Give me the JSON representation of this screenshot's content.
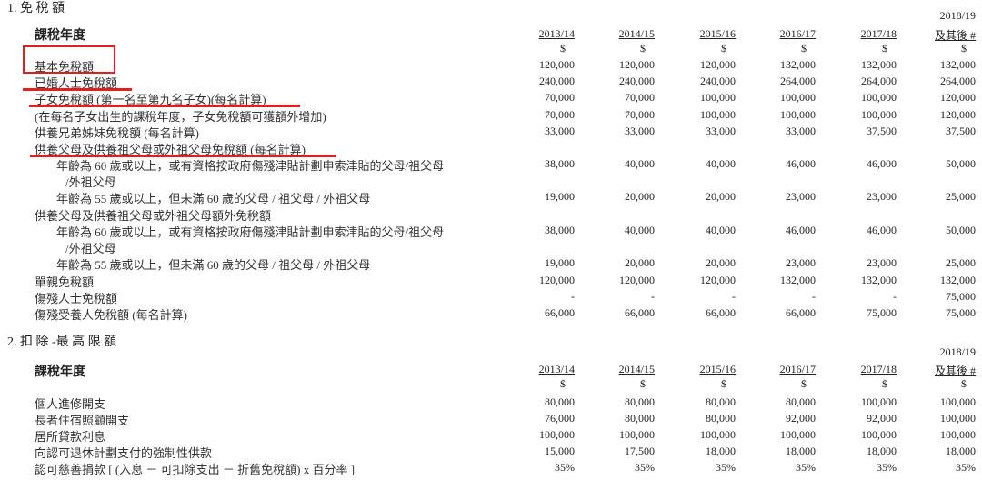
{
  "colors": {
    "annotation_red": "#e02020",
    "text": "#222222"
  },
  "section1": {
    "title": "1. 免 稅 額",
    "header_label": "課稅年度",
    "last_year_top": "2018/19",
    "years": [
      "2013/14",
      "2014/15",
      "2015/16",
      "2016/17",
      "2017/18",
      "及其後 #"
    ],
    "currency": [
      "$",
      "$",
      "$",
      "$",
      "$",
      "$"
    ],
    "rows": [
      {
        "label": "基本免稅額",
        "indent": 0,
        "values": [
          "120,000",
          "120,000",
          "120,000",
          "132,000",
          "132,000",
          "132,000"
        ]
      },
      {
        "label": "已婚人士免稅額",
        "indent": 0,
        "values": [
          "240,000",
          "240,000",
          "240,000",
          "264,000",
          "264,000",
          "264,000"
        ]
      },
      {
        "label": "子女免稅額 (第一名至第九名子女)(每名計算)",
        "indent": 0,
        "values": [
          "70,000",
          "70,000",
          "100,000",
          "100,000",
          "100,000",
          "120,000"
        ]
      },
      {
        "label": "(在每名子女出生的課稅年度，子女免稅額可獲額外增加)",
        "indent": 0,
        "values": [
          "70,000",
          "70,000",
          "100,000",
          "100,000",
          "100,000",
          "120,000"
        ]
      },
      {
        "label": "供養兄弟姊妹免稅額 (每名計算)",
        "indent": 0,
        "values": [
          "33,000",
          "33,000",
          "33,000",
          "33,000",
          "37,500",
          "37,500"
        ]
      },
      {
        "label": "供養父母及供養祖父母或外祖父母免稅額 (每名計算)",
        "indent": 0,
        "values": []
      },
      {
        "label": "年齡為 60 歲或以上，或有資格按政府傷殘津貼計劃申索津貼的父母/祖父母",
        "cont": "/外祖父母",
        "indent": 1,
        "values": [
          "38,000",
          "40,000",
          "40,000",
          "46,000",
          "46,000",
          "50,000"
        ]
      },
      {
        "label": "年齡為 55 歲或以上，但未滿 60 歲的父母 / 祖父母 / 外祖父母",
        "indent": 1,
        "values": [
          "19,000",
          "20,000",
          "20,000",
          "23,000",
          "23,000",
          "25,000"
        ]
      },
      {
        "label": "供養父母及供養祖父母或外祖父母額外免稅額",
        "indent": 0,
        "values": []
      },
      {
        "label": "年齡為 60 歲或以上，或有資格按政府傷殘津貼計劃申索津貼的父母/祖父母",
        "cont": "/外祖父母",
        "indent": 1,
        "values": [
          "38,000",
          "40,000",
          "40,000",
          "46,000",
          "46,000",
          "50,000"
        ]
      },
      {
        "label": "年齡為 55 歲或以上，但未滿 60 歲的父母 / 祖父母 / 外祖父母",
        "indent": 1,
        "values": [
          "19,000",
          "20,000",
          "20,000",
          "23,000",
          "23,000",
          "25,000"
        ]
      },
      {
        "label": "單親免稅額",
        "indent": 0,
        "values": [
          "120,000",
          "120,000",
          "120,000",
          "132,000",
          "132,000",
          "132,000"
        ]
      },
      {
        "label": "傷殘人士免稅額",
        "indent": 0,
        "values": [
          "-",
          "-",
          "-",
          "-",
          "-",
          "75,000"
        ]
      },
      {
        "label": "傷殘受養人免稅額 (每名計算)",
        "indent": 0,
        "values": [
          "66,000",
          "66,000",
          "66,000",
          "66,000",
          "75,000",
          "75,000"
        ]
      }
    ]
  },
  "section2": {
    "title": "2. 扣 除  -最 高 限 額",
    "header_label": "課稅年度",
    "last_year_top": "2018/19",
    "years": [
      "2013/14",
      "2014/15",
      "2015/16",
      "2016/17",
      "2017/18",
      "及其後 #"
    ],
    "currency": [
      "$",
      "$",
      "$",
      "$",
      "$",
      "$"
    ],
    "rows": [
      {
        "label": "個人進修開支",
        "indent": 0,
        "values": [
          "80,000",
          "80,000",
          "80,000",
          "80,000",
          "100,000",
          "100,000"
        ]
      },
      {
        "label": "長者住宿照顧開支",
        "indent": 0,
        "values": [
          "76,000",
          "80,000",
          "80,000",
          "92,000",
          "92,000",
          "100,000"
        ]
      },
      {
        "label": "居所貸款利息",
        "indent": 0,
        "values": [
          "100,000",
          "100,000",
          "100,000",
          "100,000",
          "100,000",
          "100,000"
        ]
      },
      {
        "label": "向認可退休計劃支付的強制性供款",
        "indent": 0,
        "values": [
          "15,000",
          "17,500",
          "18,000",
          "18,000",
          "18,000",
          "18,000"
        ]
      },
      {
        "label": "認可慈善捐款 [ (入息 － 可扣除支出 － 折舊免稅額) x 百分率 ]",
        "indent": 0,
        "values": [
          "35%",
          "35%",
          "35%",
          "35%",
          "35%",
          "35%"
        ]
      }
    ]
  }
}
